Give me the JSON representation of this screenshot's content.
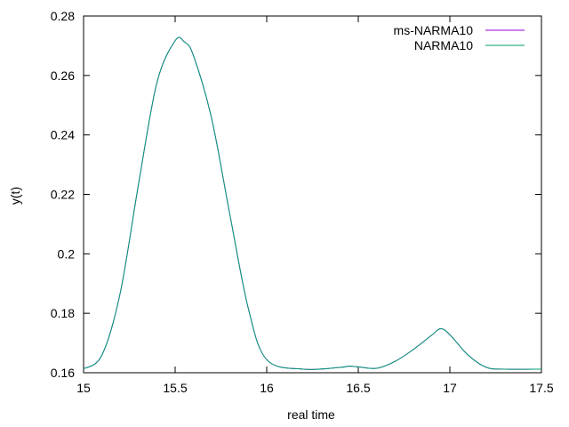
{
  "chart_data": {
    "type": "line",
    "title": "",
    "xlabel": "real time",
    "ylabel": "y(t)",
    "xlim": [
      15,
      17.5
    ],
    "ylim": [
      0.16,
      0.28
    ],
    "xticks": [
      "15",
      "15.5",
      "16",
      "16.5",
      "17",
      "17.5"
    ],
    "yticks": [
      "0.16",
      "0.18",
      "0.2",
      "0.22",
      "0.24",
      "0.26",
      "0.28"
    ],
    "grid": false,
    "legend_position": "top-right",
    "series": [
      {
        "name": "ms-NARMA10",
        "color": "#9400d3",
        "x": [
          15.0,
          15.1,
          15.2,
          15.3,
          15.4,
          15.5,
          15.55,
          15.6,
          15.7,
          15.8,
          15.9,
          16.0,
          16.2,
          16.4,
          16.45,
          16.5,
          16.6,
          16.7,
          16.8,
          16.9,
          16.95,
          17.0,
          17.1,
          17.2,
          17.3,
          17.5
        ],
        "values": [
          0.1613,
          0.1659,
          0.1868,
          0.2234,
          0.2575,
          0.2717,
          0.2713,
          0.2667,
          0.2453,
          0.2128,
          0.1815,
          0.1644,
          0.1612,
          0.1618,
          0.1622,
          0.162,
          0.1615,
          0.1638,
          0.1678,
          0.1726,
          0.1748,
          0.1728,
          0.1659,
          0.1618,
          0.1612,
          0.1612
        ]
      },
      {
        "name": "NARMA10",
        "color": "#009e73",
        "x": [
          15.0,
          15.1,
          15.2,
          15.3,
          15.4,
          15.5,
          15.55,
          15.6,
          15.7,
          15.8,
          15.9,
          16.0,
          16.2,
          16.4,
          16.45,
          16.5,
          16.6,
          16.7,
          16.8,
          16.9,
          16.95,
          17.0,
          17.1,
          17.2,
          17.3,
          17.5
        ],
        "values": [
          0.1613,
          0.1659,
          0.1868,
          0.2234,
          0.2575,
          0.2717,
          0.2713,
          0.2667,
          0.2453,
          0.2128,
          0.1815,
          0.1644,
          0.1612,
          0.1618,
          0.1622,
          0.162,
          0.1615,
          0.1638,
          0.1678,
          0.1726,
          0.1748,
          0.1728,
          0.1659,
          0.1618,
          0.1612,
          0.1612
        ]
      }
    ]
  }
}
